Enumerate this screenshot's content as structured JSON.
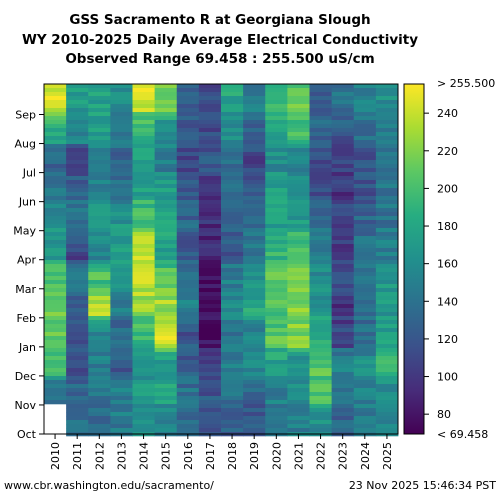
{
  "chart_data": {
    "type": "heatmap",
    "title": [
      "GSS Sacramento R at Georgiana Slough",
      "WY 2010-2025 Daily Average Electrical Conductivity",
      "Observed Range 69.458 : 255.500 uS/cm"
    ],
    "x_categories": [
      "2010",
      "2011",
      "2012",
      "2013",
      "2014",
      "2015",
      "2016",
      "2017",
      "2018",
      "2019",
      "2020",
      "2021",
      "2022",
      "2023",
      "2024",
      "2025"
    ],
    "y_ticks": [
      "Oct",
      "Nov",
      "Dec",
      "Jan",
      "Feb",
      "Mar",
      "Apr",
      "May",
      "Jun",
      "Jul",
      "Aug",
      "Sep"
    ],
    "colorbar": {
      "min": 69.458,
      "max": 255.5,
      "ticks": [
        80,
        100,
        120,
        140,
        160,
        180,
        200,
        220,
        240
      ],
      "top_label": "> 255.500",
      "bottom_label": "< 69.458",
      "colormap": "viridis"
    },
    "monthly_values_oct_to_sep": [
      [
        null,
        140,
        195,
        215,
        210,
        205,
        165,
        160,
        140,
        130,
        180,
        240
      ],
      [
        140,
        135,
        110,
        120,
        125,
        145,
        110,
        145,
        130,
        100,
        150,
        170
      ],
      [
        130,
        140,
        150,
        150,
        230,
        200,
        150,
        175,
        155,
        145,
        170,
        175
      ],
      [
        145,
        150,
        120,
        130,
        150,
        165,
        170,
        165,
        140,
        130,
        150,
        160
      ],
      [
        160,
        170,
        165,
        190,
        225,
        250,
        240,
        205,
        175,
        180,
        190,
        240
      ],
      [
        150,
        175,
        175,
        245,
        230,
        205,
        175,
        180,
        170,
        150,
        160,
        210
      ],
      [
        130,
        140,
        120,
        120,
        150,
        140,
        120,
        130,
        120,
        110,
        120,
        130
      ],
      [
        110,
        120,
        105,
        80,
        70,
        75,
        90,
        95,
        100,
        120,
        110,
        110
      ],
      [
        130,
        140,
        150,
        145,
        160,
        150,
        120,
        130,
        140,
        140,
        160,
        180
      ],
      [
        120,
        130,
        160,
        150,
        180,
        165,
        140,
        140,
        120,
        110,
        130,
        150
      ],
      [
        140,
        150,
        175,
        205,
        200,
        205,
        190,
        175,
        170,
        160,
        180,
        200
      ],
      [
        150,
        160,
        160,
        220,
        220,
        215,
        200,
        170,
        160,
        150,
        200,
        210
      ],
      [
        160,
        200,
        205,
        180,
        165,
        160,
        150,
        130,
        110,
        115,
        130,
        130
      ],
      [
        130,
        140,
        150,
        110,
        100,
        120,
        100,
        110,
        100,
        110,
        120,
        140
      ],
      [
        140,
        150,
        160,
        135,
        140,
        150,
        140,
        130,
        120,
        120,
        140,
        150
      ],
      [
        150,
        160,
        190,
        175,
        170,
        165,
        150,
        140,
        140,
        145,
        150,
        160
      ]
    ],
    "notes": "Each column is a water year (Oct-Sep); colors encode daily average EC in uS/cm."
  },
  "footer": {
    "url": "www.cbr.washington.edu/sacramento/",
    "timestamp": "23 Nov 2025 15:46:34 PST"
  }
}
